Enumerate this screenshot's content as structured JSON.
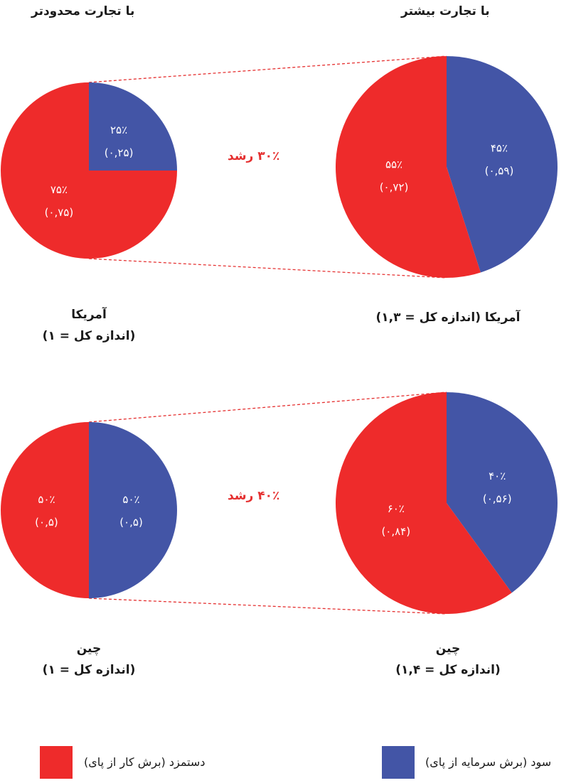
{
  "headers": {
    "limited": "با تجارت محدودتر",
    "more": "با تجارت بیشتر"
  },
  "colors": {
    "wages": "#ee2b2b",
    "profit": "#4355a6",
    "dashed": "#e53030"
  },
  "chart_data": [
    {
      "type": "pie",
      "title": "آمریکا",
      "subtitle": "(اندازه کل = ۱)",
      "total": 1,
      "slices": [
        {
          "name": "سود",
          "percent_label": "۲۵٪",
          "value_label": "(۰,۲۵)",
          "value": 0.25
        },
        {
          "name": "دستمزد",
          "percent_label": "۷۵٪",
          "value_label": "(۰,۷۵)",
          "value": 0.75
        }
      ]
    },
    {
      "type": "pie",
      "title": "آمریکا (اندازه کل = ۱,۳)",
      "total": 1.3,
      "growth_label": "۳۰٪ رشد",
      "slices": [
        {
          "name": "سود",
          "percent_label": "۴۵٪",
          "value_label": "(۰,۵۹)",
          "value": 0.59
        },
        {
          "name": "دستمزد",
          "percent_label": "۵۵٪",
          "value_label": "(۰,۷۲)",
          "value": 0.72
        }
      ]
    },
    {
      "type": "pie",
      "title": "چین",
      "subtitle": "(اندازه کل = ۱)",
      "total": 1,
      "slices": [
        {
          "name": "سود",
          "percent_label": "۵۰٪",
          "value_label": "(۰,۵)",
          "value": 0.5
        },
        {
          "name": "دستمزد",
          "percent_label": "۵۰٪",
          "value_label": "(۰,۵)",
          "value": 0.5
        }
      ]
    },
    {
      "type": "pie",
      "title": "چین",
      "subtitle": "(اندازه کل = ۱,۴)",
      "total": 1.4,
      "growth_label": "۴۰٪ رشد",
      "slices": [
        {
          "name": "سود",
          "percent_label": "۴۰٪",
          "value_label": "(۰,۵۶)",
          "value": 0.56
        },
        {
          "name": "دستمزد",
          "percent_label": "۶۰٪",
          "value_label": "(۰,۸۴)",
          "value": 0.84
        }
      ]
    }
  ],
  "legend": {
    "wages": "دستمزد (برش کار از پای)",
    "profit": "سود (برش سرمایه از پای)"
  }
}
